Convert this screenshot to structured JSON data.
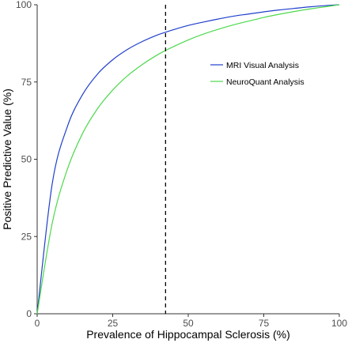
{
  "chart_data": {
    "type": "line",
    "title": "",
    "xlabel": "Prevalence of Hippocampal Sclerosis (%)",
    "ylabel": "Positive Predictive Value (%)",
    "xlim": [
      0,
      100
    ],
    "ylim": [
      0,
      100
    ],
    "xticks": [
      0,
      25,
      50,
      75,
      100
    ],
    "yticks": [
      0,
      25,
      50,
      75,
      100
    ],
    "grid": false,
    "legend_position": "right",
    "reference_line": {
      "type": "vertical",
      "style": "dashed",
      "x": 42.5,
      "color": "#000000"
    },
    "series": [
      {
        "name": "MRI Visual Analysis",
        "color": "#1f3fcc",
        "x": [
          0,
          5,
          10,
          15,
          20,
          25,
          30,
          35,
          40,
          42.5,
          45,
          50,
          55,
          60,
          65,
          70,
          75,
          80,
          85,
          90,
          95,
          100
        ],
        "values": [
          0,
          42.2,
          60.6,
          70.9,
          77.6,
          82.2,
          85.6,
          88.2,
          90.3,
          91.1,
          91.9,
          93.3,
          94.4,
          95.4,
          96.3,
          97.0,
          97.7,
          98.3,
          98.8,
          99.3,
          99.7,
          100
        ]
      },
      {
        "name": "NeuroQuant Analysis",
        "color": "#4cd94c",
        "x": [
          0,
          5,
          10,
          15,
          20,
          25,
          30,
          35,
          40,
          42.5,
          45,
          50,
          55,
          60,
          65,
          70,
          75,
          80,
          85,
          90,
          95,
          100
        ],
        "values": [
          0,
          29.4,
          46.8,
          58.3,
          66.4,
          72.4,
          77.1,
          80.8,
          83.9,
          85.2,
          86.4,
          88.6,
          90.5,
          92.1,
          93.5,
          94.7,
          95.9,
          96.9,
          97.8,
          98.6,
          99.3,
          100
        ]
      }
    ]
  }
}
